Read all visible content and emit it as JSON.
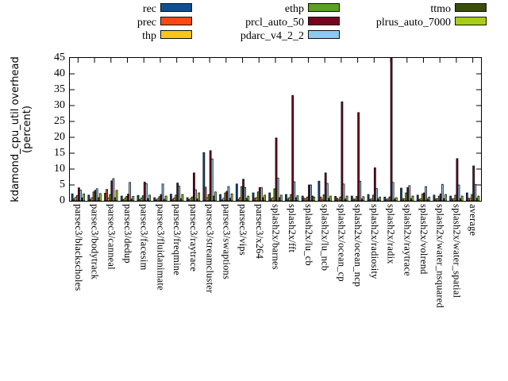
{
  "figure": {
    "background": "#ffffff",
    "bar_outline_color": "#000000",
    "frame_color": "#000000"
  },
  "y_axis": {
    "title_line1": "kdamond_cpu_util overhead",
    "title_line2": "(percent)",
    "min": 0,
    "max": 45,
    "tick_step": 5,
    "tick_labels": [
      "0",
      "5",
      "10",
      "15",
      "20",
      "25",
      "30",
      "35",
      "40",
      "45"
    ]
  },
  "legend": {
    "position": "top-horizontal",
    "columns": [
      [
        "rec",
        "prec",
        "thp"
      ],
      [
        "ethp",
        "prcl_auto_50",
        "pdarc_v4_2_2"
      ],
      [
        "ttmo",
        "plrus_auto_7000"
      ]
    ]
  },
  "chart_data": {
    "type": "bar",
    "title": "",
    "xlabel": "",
    "ylabel": "kdamond_cpu_util overhead (percent)",
    "ylim": [
      0,
      45
    ],
    "grid": false,
    "legend_position": "top",
    "categories": [
      "parsec3/blackscholes",
      "parsec3/bodytrack",
      "parsec3/canneal",
      "parsec3/dedup",
      "parsec3/facesim",
      "parsec3/fluidanimate",
      "parsec3/freqmine",
      "parsec3/raytrace",
      "parsec3/streamcluster",
      "parsec3/swaptions",
      "parsec3/vips",
      "parsec3/x264",
      "splash2x/barnes",
      "splash2x/fft",
      "splash2x/lu_cb",
      "splash2x/lu_ncb",
      "splash2x/ocean_cp",
      "splash2x/ocean_ncp",
      "splash2x/radiosity",
      "splash2x/radix",
      "splash2x/raytrace",
      "splash2x/volrend",
      "splash2x/water_nsquared",
      "splash2x/water_spatial",
      "average"
    ],
    "series": [
      {
        "name": "rec",
        "color": "#11508e",
        "values": [
          2.2,
          1.8,
          2.4,
          1.5,
          1.7,
          1.0,
          2.1,
          1.0,
          15.2,
          2.0,
          5.3,
          2.5,
          2.5,
          2.0,
          1.5,
          6.2,
          1.4,
          1.5,
          2.0,
          1.2,
          4.0,
          1.8,
          1.8,
          1.5,
          2.5
        ]
      },
      {
        "name": "prec",
        "color": "#fb4913",
        "values": [
          0.6,
          0.5,
          3.6,
          0.4,
          0.4,
          0.3,
          0.5,
          0.4,
          4.3,
          0.3,
          0.5,
          0.8,
          0.7,
          0.6,
          0.8,
          1.2,
          0.8,
          0.6,
          0.5,
          0.5,
          0.6,
          0.5,
          0.6,
          0.6,
          0.8
        ]
      },
      {
        "name": "thp",
        "color": "#fdc41d",
        "values": [
          1.1,
          1.0,
          0.9,
          0.8,
          0.9,
          0.7,
          0.9,
          0.8,
          1.0,
          0.8,
          1.0,
          1.0,
          1.0,
          1.0,
          0.7,
          0.5,
          0.5,
          0.5,
          0.6,
          0.6,
          0.7,
          0.6,
          0.7,
          0.7,
          0.8
        ]
      },
      {
        "name": "ethp",
        "color": "#5ba021",
        "values": [
          1.7,
          2.8,
          2.0,
          1.4,
          1.6,
          1.3,
          1.8,
          1.2,
          2.0,
          2.5,
          4.5,
          2.8,
          3.8,
          2.0,
          1.2,
          1.9,
          1.2,
          1.4,
          1.8,
          1.2,
          2.5,
          2.2,
          1.5,
          1.8,
          2.0
        ]
      },
      {
        "name": "prcl_auto_50",
        "color": "#7a0020",
        "values": [
          4.1,
          3.3,
          6.3,
          2.1,
          5.9,
          2.0,
          5.6,
          8.8,
          15.8,
          3.0,
          6.8,
          4.2,
          19.8,
          33.2,
          5.0,
          8.8,
          31.2,
          27.8,
          10.4,
          45.0,
          4.2,
          2.5,
          2.2,
          13.3,
          11.0
        ]
      },
      {
        "name": "pdarc_v4_2_2",
        "color": "#8ccaf0",
        "values": [
          3.4,
          3.8,
          7.0,
          5.8,
          5.4,
          5.3,
          4.6,
          3.5,
          13.2,
          4.5,
          4.2,
          4.2,
          7.2,
          6.0,
          5.0,
          5.5,
          5.3,
          6.2,
          3.9,
          5.8,
          4.8,
          4.5,
          5.2,
          5.0,
          5.2
        ]
      },
      {
        "name": "ttmo",
        "color": "#3c4c0d",
        "values": [
          0.9,
          1.0,
          1.0,
          0.6,
          0.7,
          0.5,
          0.7,
          0.6,
          1.5,
          0.8,
          0.8,
          1.0,
          1.0,
          1.0,
          1.5,
          0.8,
          0.6,
          0.6,
          0.6,
          0.6,
          0.7,
          0.6,
          0.7,
          0.7,
          0.8
        ]
      },
      {
        "name": "plrus_auto_7000",
        "color": "#a8ce14",
        "values": [
          2.2,
          2.3,
          3.3,
          1.4,
          1.8,
          1.5,
          2.0,
          2.5,
          2.8,
          2.2,
          1.5,
          1.8,
          1.8,
          1.6,
          1.2,
          1.5,
          1.5,
          1.3,
          1.2,
          1.0,
          1.5,
          1.2,
          2.0,
          1.5,
          1.5
        ]
      }
    ]
  }
}
